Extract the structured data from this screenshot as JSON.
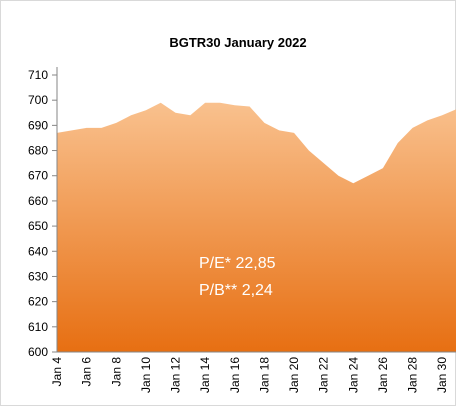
{
  "chart_data": {
    "type": "area",
    "title": "BGTR30  January 2022",
    "categories": [
      "Jan 4",
      null,
      "Jan 6",
      null,
      "Jan 8",
      null,
      "Jan 10",
      null,
      "Jan 12",
      null,
      "Jan 14",
      null,
      "Jan 16",
      null,
      "Jan 18",
      null,
      "Jan 20",
      null,
      "Jan 22",
      null,
      "Jan 24",
      null,
      "Jan 26",
      null,
      "Jan 28",
      null,
      "Jan 30",
      null
    ],
    "values": [
      687,
      688,
      689,
      689,
      691,
      694,
      696,
      699,
      695,
      694,
      699,
      699,
      698,
      697.5,
      691,
      688,
      687,
      680,
      675,
      670,
      667,
      670,
      673,
      683,
      689,
      692,
      694,
      696.5
    ],
    "colors": [
      "#f9c18e",
      "#e76f12"
    ],
    "ylim": [
      600,
      710
    ],
    "yticks": [
      600,
      610,
      620,
      630,
      640,
      650,
      660,
      670,
      680,
      690,
      700,
      710
    ],
    "annotations": [
      "P/E*  22,85",
      "P/B**  2,24"
    ]
  }
}
